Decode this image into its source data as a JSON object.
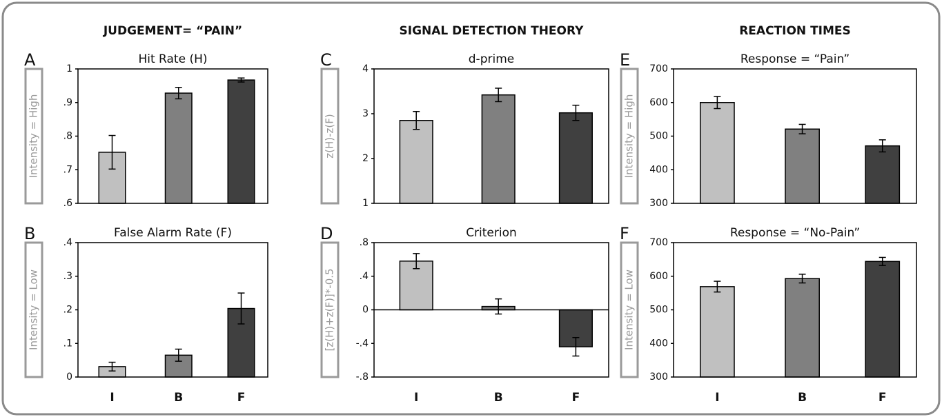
{
  "headers": [
    "JUDGEMENT= “PAIN”",
    "SIGNAL DETECTION THEORY",
    "REACTION TIMES"
  ],
  "chart_data": [
    {
      "type": "bar",
      "panel": "A",
      "title": "Hit Rate (H)",
      "ylabel": "Intensity = High",
      "values": [
        0.752,
        0.928,
        0.967
      ],
      "errors": [
        0.05,
        0.017,
        0.006
      ],
      "colors": [
        "#c0c0c0",
        "#808080",
        "#404040"
      ],
      "ylim": [
        0.6,
        1
      ],
      "yticks": [
        {
          "value": 0.6,
          "label": ".6"
        },
        {
          "value": 0.7,
          "label": ".7"
        },
        {
          "value": 0.8,
          "label": ".8"
        },
        {
          "value": 0.9,
          "label": ".9"
        },
        1
      ]
    },
    {
      "type": "bar",
      "panel": "B",
      "title": "False Alarm Rate (F)",
      "ylabel": "Intensity = Low",
      "categories": [
        "I",
        "B",
        "F"
      ],
      "values": [
        0.031,
        0.065,
        0.204
      ],
      "errors": [
        0.013,
        0.018,
        0.046
      ],
      "colors": [
        "#c0c0c0",
        "#808080",
        "#404040"
      ],
      "ylim": [
        0,
        0.4
      ],
      "yticks": [
        0,
        {
          "value": 0.1,
          "label": ".1"
        },
        {
          "value": 0.2,
          "label": ".2"
        },
        {
          "value": 0.3,
          "label": ".3"
        },
        {
          "value": 0.4,
          "label": ".4"
        }
      ]
    },
    {
      "type": "bar",
      "panel": "C",
      "title": "d-prime",
      "ylabel": "z(H)-z(F)",
      "values": [
        2.85,
        3.42,
        3.02
      ],
      "errors": [
        0.2,
        0.15,
        0.17
      ],
      "colors": [
        "#c0c0c0",
        "#808080",
        "#404040"
      ],
      "ylim": [
        1,
        4
      ],
      "yticks": [
        1,
        2,
        3,
        4
      ]
    },
    {
      "type": "bar",
      "panel": "D",
      "title": "Criterion",
      "ylabel": "[z(H)+z(F)]*-0.5",
      "categories": [
        "I",
        "B",
        "F"
      ],
      "values": [
        0.58,
        0.04,
        -0.44
      ],
      "errors": [
        0.09,
        0.09,
        0.11
      ],
      "colors": [
        "#c0c0c0",
        "#808080",
        "#404040"
      ],
      "ylim": [
        -0.8,
        0.8
      ],
      "yticks": [
        {
          "value": -0.8,
          "label": "-.8"
        },
        {
          "value": -0.4,
          "label": "-.4"
        },
        0,
        {
          "value": 0.4,
          "label": ".4"
        },
        {
          "value": 0.8,
          "label": ".8"
        }
      ]
    },
    {
      "type": "bar",
      "panel": "E",
      "title": "Response = “Pain”",
      "ylabel": "Intensity = High",
      "values": [
        600,
        521,
        471
      ],
      "errors": [
        18,
        14,
        18
      ],
      "colors": [
        "#c0c0c0",
        "#808080",
        "#404040"
      ],
      "ylim": [
        300,
        700
      ],
      "yticks": [
        300,
        400,
        500,
        600,
        700
      ]
    },
    {
      "type": "bar",
      "panel": "F",
      "title": "Response = “No-Pain”",
      "ylabel": "Intensity = Low",
      "categories": [
        "I",
        "B",
        "F"
      ],
      "values": [
        569,
        593,
        644
      ],
      "errors": [
        16,
        13,
        12
      ],
      "colors": [
        "#c0c0c0",
        "#808080",
        "#404040"
      ],
      "ylim": [
        300,
        700
      ],
      "yticks": [
        300,
        400,
        500,
        600,
        700
      ]
    }
  ]
}
